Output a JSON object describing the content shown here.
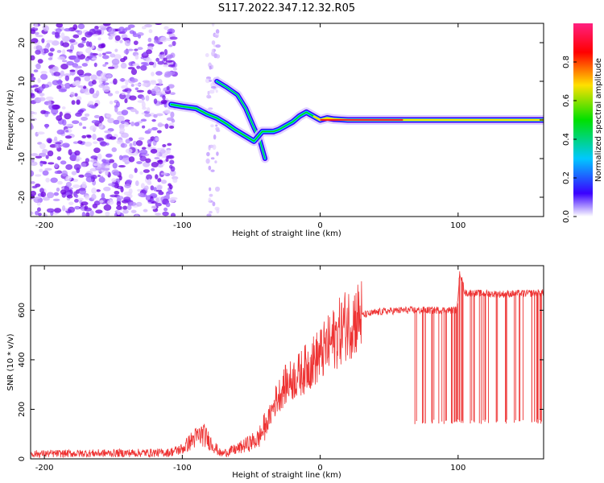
{
  "title": "S117.2022.347.12.32.R05",
  "chart_data": [
    {
      "type": "heatmap",
      "xlabel": "Height of straight line (km)",
      "ylabel": "Frequency (Hz)",
      "xlim": [
        -210,
        162
      ],
      "ylim": [
        -25,
        25
      ],
      "x_ticks": [
        -200,
        -100,
        0,
        100
      ],
      "x_tick_labels": [
        "-200",
        "-100",
        "0",
        "100"
      ],
      "y_ticks": [
        -20,
        -10,
        0,
        10,
        20
      ],
      "y_tick_labels": [
        "-20",
        "-10",
        "0",
        "10",
        "20"
      ],
      "colorbar": {
        "label": "Normalized spectral amplitude",
        "range": [
          0,
          1
        ],
        "ticks": [
          0.0,
          0.2,
          0.4,
          0.6,
          0.8
        ],
        "tick_labels": [
          "0.0",
          "0.2",
          "0.4",
          "0.6",
          "0.8"
        ],
        "colormap": [
          "#ffffff",
          "#3a00ff",
          "#00c8ff",
          "#00e000",
          "#ffe000",
          "#ff0000",
          "#ff2080"
        ]
      },
      "features": {
        "noise_region_x": [
          -210,
          -105
        ],
        "main_trace": {
          "x": [
            -108,
            -100,
            -90,
            -82,
            -75,
            -68,
            -62,
            -55,
            -48,
            -42,
            -38,
            -34,
            -30,
            -25,
            -20,
            -15,
            -10,
            -5,
            0,
            5,
            10,
            20,
            40,
            60,
            80,
            100,
            120,
            140,
            162
          ],
          "y": [
            4,
            3.5,
            3,
            1.5,
            0.5,
            -1,
            -2.5,
            -4,
            -5.5,
            -3,
            -3,
            -3,
            -2.5,
            -1.5,
            -0.5,
            1,
            2,
            1,
            0,
            0.5,
            0.2,
            0,
            0,
            0,
            0,
            0,
            0,
            0,
            0
          ]
        },
        "secondary_trace": {
          "x": [
            -75,
            -68,
            -60,
            -54,
            -48,
            -44,
            -40
          ],
          "y": [
            10,
            8.5,
            6.5,
            3,
            -2,
            -5,
            -10
          ]
        }
      },
      "grid": false,
      "legend": "none"
    },
    {
      "type": "line",
      "xlabel": "Height of straight line (km)",
      "ylabel": "SNR (10 * v/v)",
      "xlim": [
        -210,
        162
      ],
      "ylim": [
        0,
        780
      ],
      "x_ticks": [
        -200,
        -100,
        0,
        100
      ],
      "x_tick_labels": [
        "-200",
        "-100",
        "0",
        "100"
      ],
      "y_ticks": [
        0,
        200,
        400,
        600
      ],
      "y_tick_labels": [
        "0",
        "200",
        "400",
        "600"
      ],
      "series_color": "#ee3333",
      "envelope": {
        "x": [
          -210,
          -110,
          -100,
          -92,
          -85,
          -80,
          -72,
          -60,
          -45,
          -38,
          -32,
          -25,
          -15,
          -8,
          0,
          8,
          18,
          30,
          45,
          60,
          80,
          99,
          100,
          101,
          105,
          130,
          162
        ],
        "y": [
          20,
          25,
          40,
          80,
          100,
          70,
          20,
          40,
          80,
          150,
          240,
          300,
          340,
          380,
          420,
          470,
          540,
          580,
          595,
          600,
          600,
          600,
          640,
          760,
          670,
          665,
          670
        ]
      },
      "dropouts": {
        "x_range": [
          68,
          162
        ],
        "min_value": 140,
        "count": 60
      },
      "grid": false,
      "legend": "none"
    }
  ]
}
